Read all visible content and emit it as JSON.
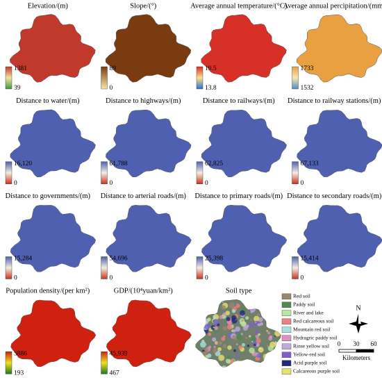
{
  "figure": {
    "panels": [
      {
        "title": "Elevation/(m)",
        "max": "1381",
        "min": "39",
        "ramp": [
          "#c0392b",
          "#f3e3a0",
          "#3c9a3c"
        ]
      },
      {
        "title": "Slope/(°)",
        "max": "89",
        "min": "0",
        "ramp": [
          "#7a3b10",
          "#f5e6a8"
        ]
      },
      {
        "title": "Average annual temperature/(°C)",
        "max": "19.5",
        "min": "13.8",
        "ramp": [
          "#d73027",
          "#fee08b",
          "#2c6fd0"
        ]
      },
      {
        "title": "Average annual percipitation/(mm)",
        "max": "1733",
        "min": "1532",
        "ramp": [
          "#e8a040",
          "#f7e6b0",
          "#4a90c8"
        ]
      },
      {
        "title": "Distance to water/(m)",
        "max": "16,120",
        "min": "0",
        "ramp": [
          "#5060b0",
          "#f3ece0",
          "#c8341e"
        ]
      },
      {
        "title": "Distance to highways/(m)",
        "max": "61,788",
        "min": "0",
        "ramp": [
          "#5060b0",
          "#f3ece0",
          "#c8341e"
        ]
      },
      {
        "title": "Distance to railways/(m)",
        "max": "62,825",
        "min": "0",
        "ramp": [
          "#5060b0",
          "#f3ece0",
          "#c8341e"
        ]
      },
      {
        "title": "Distance to railway stations/(m)",
        "max": "67,133",
        "min": "0",
        "ramp": [
          "#5060b0",
          "#f3ece0",
          "#c8341e"
        ]
      },
      {
        "title": "Distance to governments/(m)",
        "max": "15,284",
        "min": "0",
        "ramp": [
          "#5060b0",
          "#f3ece0",
          "#c8341e"
        ]
      },
      {
        "title": "Distance to arterial roads/(m)",
        "max": "54,696",
        "min": "0",
        "ramp": [
          "#5060b0",
          "#f3ece0",
          "#c8341e"
        ]
      },
      {
        "title": "Distance to primary roads/(m)",
        "max": "25,398",
        "min": "0",
        "ramp": [
          "#5060b0",
          "#f3ece0",
          "#c8341e"
        ]
      },
      {
        "title": "Distance to secondary roads/(m)",
        "max": "15,414",
        "min": "0",
        "ramp": [
          "#5060b0",
          "#f3ece0",
          "#c8341e"
        ]
      },
      {
        "title": "Population density/(per km²)",
        "max": "5886",
        "min": "193",
        "ramp": [
          "#d02010",
          "#f0e020",
          "#1a7a1a"
        ]
      },
      {
        "title": "GDP/(10⁴yuan/km²)",
        "max": "45,939",
        "min": "467",
        "ramp": [
          "#d02010",
          "#f0e020",
          "#1a7a1a"
        ]
      }
    ],
    "soil": {
      "title": "Soil type",
      "items": [
        {
          "label": "Red soil",
          "color": "#9a8570"
        },
        {
          "label": "Paddy soil",
          "color": "#4f8a4f"
        },
        {
          "label": "River and lake",
          "color": "#b8e8a0"
        },
        {
          "label": "Red calcareous soil",
          "color": "#f08080"
        },
        {
          "label": "Mountain red soil",
          "color": "#a8e0e0"
        },
        {
          "label": "Hydragric paddy soil",
          "color": "#e090c0"
        },
        {
          "label": "Rinse yellow soil",
          "color": "#c0a8e0"
        },
        {
          "label": "Yellow-red soil",
          "color": "#8060d0"
        },
        {
          "label": "Acid purple soil",
          "color": "#202880"
        },
        {
          "label": "Calcareous purple soil",
          "color": "#e8e070"
        }
      ]
    },
    "north": "N",
    "scale": {
      "ticks": [
        "0",
        "30",
        "60"
      ],
      "unit": "Kilometers"
    }
  }
}
